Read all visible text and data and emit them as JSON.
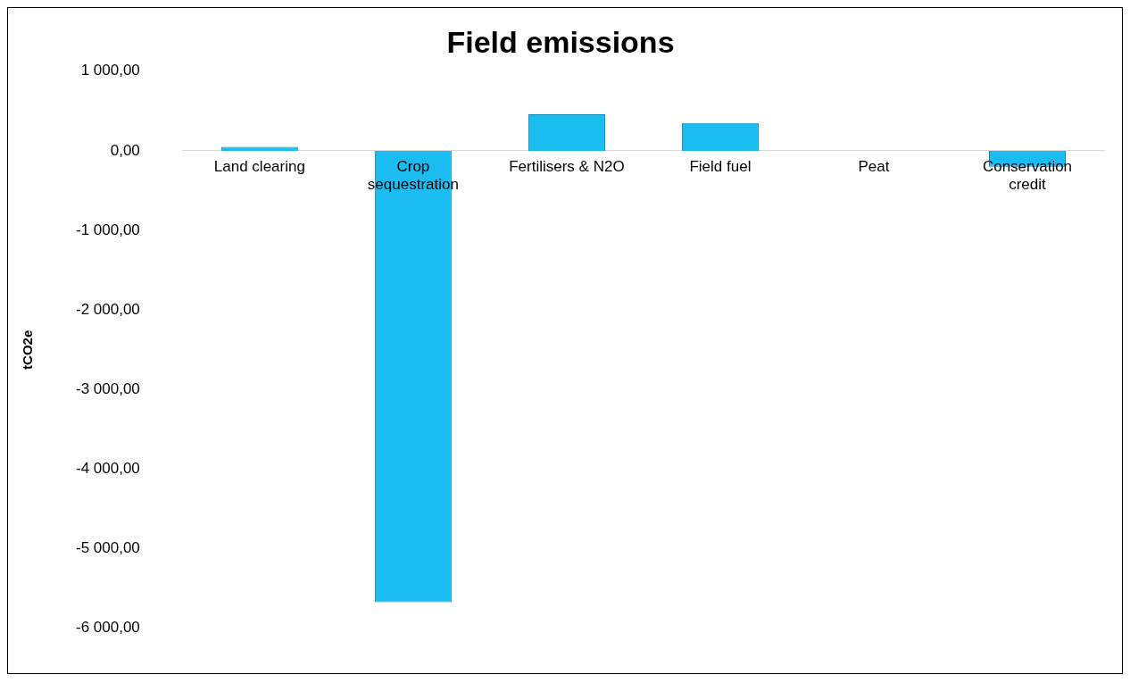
{
  "chart_data": {
    "type": "bar",
    "title": "Field emissions",
    "ylabel": "tCO2e",
    "categories": [
      "Land clearing",
      "Crop\nsequestration",
      "Fertilisers & N2O",
      "Field fuel",
      "Peat",
      "Conservation\ncredit"
    ],
    "values": [
      50,
      -5670,
      460,
      350,
      0,
      -200
    ],
    "color": "#1bbcf0",
    "ylim": [
      -6000,
      1000
    ],
    "yticks": [
      {
        "value": -6000,
        "label": "-6 000,00"
      },
      {
        "value": -5000,
        "label": "-5 000,00"
      },
      {
        "value": -4000,
        "label": "-4 000,00"
      },
      {
        "value": -3000,
        "label": "-3 000,00"
      },
      {
        "value": -2000,
        "label": "-2 000,00"
      },
      {
        "value": -1000,
        "label": "-1 000,00"
      },
      {
        "value": 0,
        "label": "0,00"
      },
      {
        "value": 1000,
        "label": "1 000,00"
      }
    ],
    "grid": false,
    "legend": false
  }
}
